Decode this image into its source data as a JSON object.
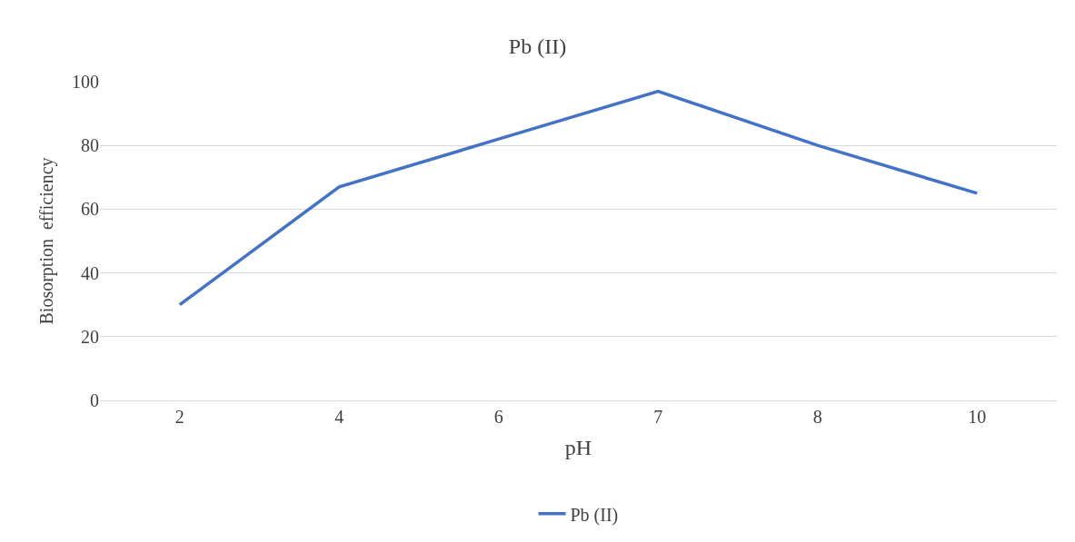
{
  "chart_data": {
    "type": "line",
    "title": "Pb (II)",
    "xlabel": "pH",
    "ylabel": "Biosorption  efficiency",
    "categories": [
      "2",
      "4",
      "6",
      "7",
      "8",
      "10"
    ],
    "series": [
      {
        "name": "Pb (II)",
        "color": "#4472c4",
        "values": [
          30,
          67,
          82,
          97,
          80,
          65
        ]
      }
    ],
    "ylim": [
      0,
      100
    ],
    "yticks": [
      0,
      20,
      40,
      60,
      80,
      100
    ],
    "grid": "y",
    "legend": "bottom",
    "marker": "none",
    "line_style": "solid"
  }
}
